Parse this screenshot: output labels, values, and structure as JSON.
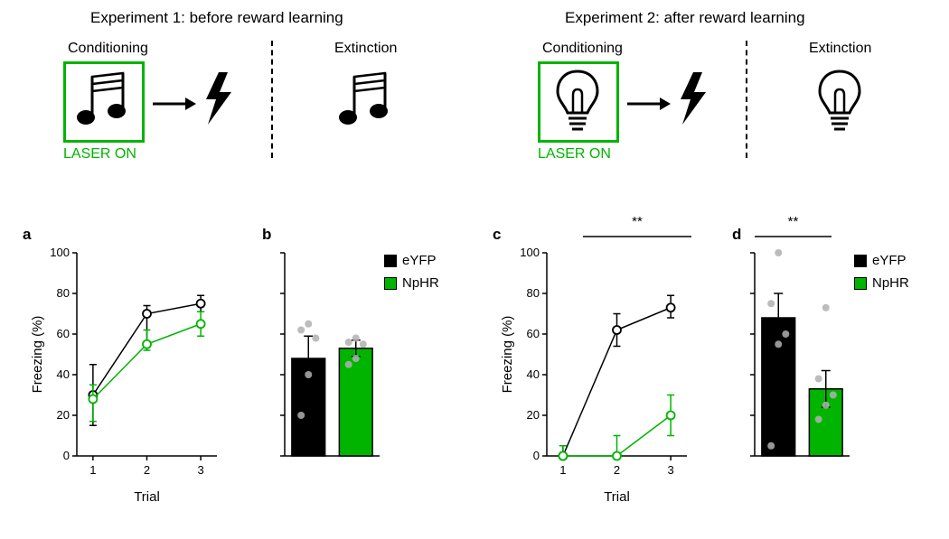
{
  "top": {
    "exp1_title": "Experiment 1: before reward learning",
    "exp2_title": "Experiment 2: after reward learning",
    "conditioning": "Conditioning",
    "extinction": "Extinction",
    "laser_on": "LASER ON",
    "green": "#00b400",
    "black": "#000000"
  },
  "legend": {
    "items": [
      {
        "label": "eYFP",
        "fill": "#000000"
      },
      {
        "label": "NpHR",
        "fill": "#00b400"
      }
    ]
  },
  "panels": {
    "a": {
      "letter": "a",
      "type": "line",
      "xlabel": "Trial",
      "ylabel": "Freezing (%)",
      "ylim": [
        0,
        100
      ],
      "ytick_step": 20,
      "xticks": [
        1,
        2,
        3
      ],
      "series": [
        {
          "name": "eYFP",
          "color": "#000000",
          "marker": "circle-open",
          "x": [
            1,
            2,
            3
          ],
          "y": [
            30,
            70,
            75
          ],
          "err": [
            [
              15,
              15
            ],
            [
              15,
              4
            ],
            [
              4,
              4
            ]
          ]
        },
        {
          "name": "NpHR",
          "color": "#00b400",
          "marker": "circle-open",
          "x": [
            1,
            2,
            3
          ],
          "y": [
            28,
            55,
            65
          ],
          "err": [
            [
              11,
              7
            ],
            [
              3,
              7
            ],
            [
              6,
              6
            ]
          ]
        }
      ]
    },
    "b": {
      "letter": "b",
      "type": "bar",
      "ylim": [
        0,
        100
      ],
      "ytick_step": 20,
      "bars": [
        {
          "name": "eYFP",
          "fill": "#000000",
          "value": 48,
          "err": 11,
          "points": [
            20,
            40,
            58,
            62,
            65
          ]
        },
        {
          "name": "NpHR",
          "fill": "#00b400",
          "value": 53,
          "err": 4,
          "points": [
            45,
            48,
            55,
            56,
            58
          ]
        }
      ],
      "bar_width": 0.7
    },
    "c": {
      "letter": "c",
      "type": "line",
      "xlabel": "Trial",
      "ylabel": "Freezing (%)",
      "ylim": [
        0,
        100
      ],
      "ytick_step": 20,
      "xticks": [
        1,
        2,
        3
      ],
      "sig": "**",
      "series": [
        {
          "name": "eYFP",
          "color": "#000000",
          "marker": "circle-open",
          "x": [
            1,
            2,
            3
          ],
          "y": [
            0,
            62,
            73
          ],
          "err": [
            [
              0,
              5
            ],
            [
              8,
              8
            ],
            [
              5,
              6
            ]
          ]
        },
        {
          "name": "NpHR",
          "color": "#00b400",
          "marker": "circle-open",
          "x": [
            1,
            2,
            3
          ],
          "y": [
            0,
            0,
            20
          ],
          "err": [
            [
              0,
              5
            ],
            [
              1,
              10
            ],
            [
              10,
              10
            ]
          ]
        }
      ]
    },
    "d": {
      "letter": "d",
      "type": "bar",
      "ylim": [
        0,
        100
      ],
      "ytick_step": 20,
      "sig": "**",
      "bars": [
        {
          "name": "eYFP",
          "fill": "#000000",
          "value": 68,
          "err": 12,
          "points": [
            5,
            55,
            60,
            75,
            100
          ]
        },
        {
          "name": "NpHR",
          "fill": "#00b400",
          "value": 33,
          "err": 9,
          "points": [
            18,
            25,
            30,
            38,
            73
          ]
        }
      ],
      "bar_width": 0.7
    }
  },
  "style": {
    "grid_color": "#ffffff",
    "axis_color": "#000000",
    "background": "#ffffff",
    "tick_fontsize": 13,
    "label_fontsize": 15,
    "scatter_point_color": "#b0b0b0",
    "scatter_point_radius": 4,
    "line_width": 1.5,
    "marker_radius": 4.5,
    "bar_border": "#000000"
  }
}
